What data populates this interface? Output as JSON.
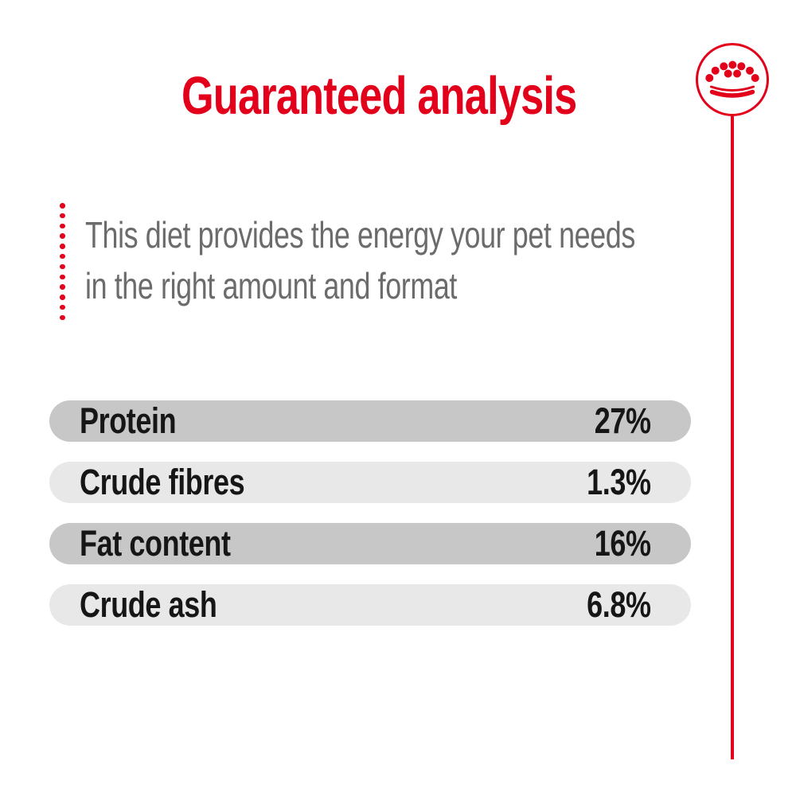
{
  "header": {
    "title": "Guaranteed analysis"
  },
  "intro": {
    "line1": "This diet provides the energy your pet needs",
    "line2": "in the right amount and format"
  },
  "analysis_table": {
    "rows": [
      {
        "label": "Protein",
        "value": "27%"
      },
      {
        "label": "Crude fibres",
        "value": "1.3%"
      },
      {
        "label": "Fat content",
        "value": "16%"
      },
      {
        "label": "Crude ash",
        "value": "6.8%"
      }
    ]
  },
  "logo": {
    "icon": "royal-canin-crown-icon"
  },
  "decor": {
    "dotted_line_dots": 12
  },
  "colors": {
    "brand_red": "#e2001a",
    "bar_dark": "#c7c7c7",
    "bar_light": "#e8e8e8",
    "text_dark": "#161616",
    "text_gray": "#6b6b6b",
    "page_bg": "#ffffff"
  }
}
